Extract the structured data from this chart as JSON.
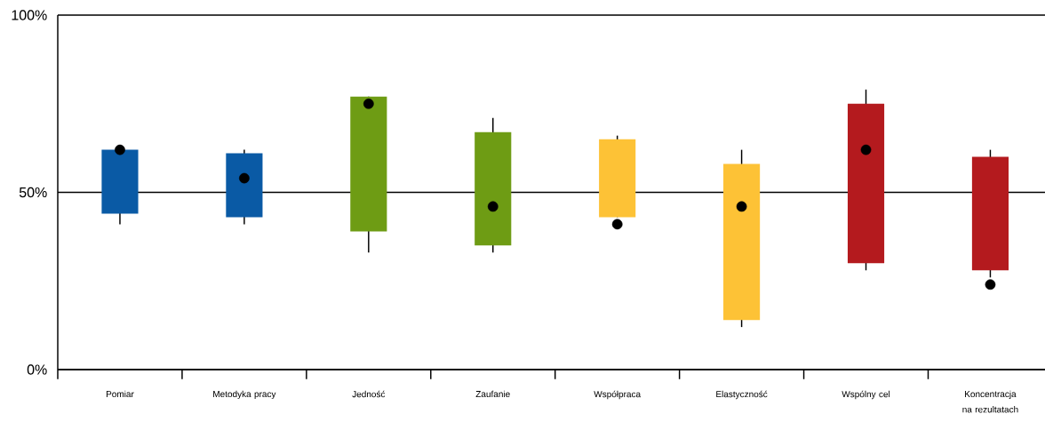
{
  "chart_data": {
    "type": "bar",
    "categories": [
      "Pomiar",
      "Metodyka pracy",
      "Jedność",
      "Zaufanie",
      "Współpraca",
      "Elastyczność",
      "Wspólny cel",
      "Koncentracja na rezultatach"
    ],
    "series": [
      {
        "base": [
          44,
          43,
          39,
          35,
          43,
          14,
          30,
          28
        ],
        "values": [
          18,
          18,
          38,
          32,
          22,
          44,
          45,
          32
        ],
        "colors": [
          "#0a5aa5",
          "#0a5aa5",
          "#6e9c14",
          "#6e9c14",
          "#fdc236",
          "#fdc236",
          "#b41a1e",
          "#b41a1e"
        ],
        "errors": [
          [
            41,
            62
          ],
          [
            41,
            62
          ],
          [
            33,
            77
          ],
          [
            33,
            71
          ],
          [
            43,
            66
          ],
          [
            12,
            62
          ],
          [
            28,
            79
          ],
          [
            26,
            62
          ]
        ]
      },
      {
        "type": "scatter",
        "x": [
          "Pomiar",
          "Metodyka pracy",
          "Jedność",
          "Zaufanie",
          "Współpraca",
          "Elastyczność",
          "Wspólny cel",
          "Koncentracja na rezultatach"
        ],
        "values": [
          62,
          54,
          75,
          46,
          41,
          46,
          62,
          24
        ],
        "color": "#000000",
        "marker": "circle"
      }
    ],
    "ylim": [
      0,
      100
    ],
    "yticks": [
      {
        "value": 0,
        "label": "0%"
      },
      {
        "value": 50,
        "label": "50%"
      },
      {
        "value": 100,
        "label": "100%"
      }
    ],
    "grid": "y"
  }
}
